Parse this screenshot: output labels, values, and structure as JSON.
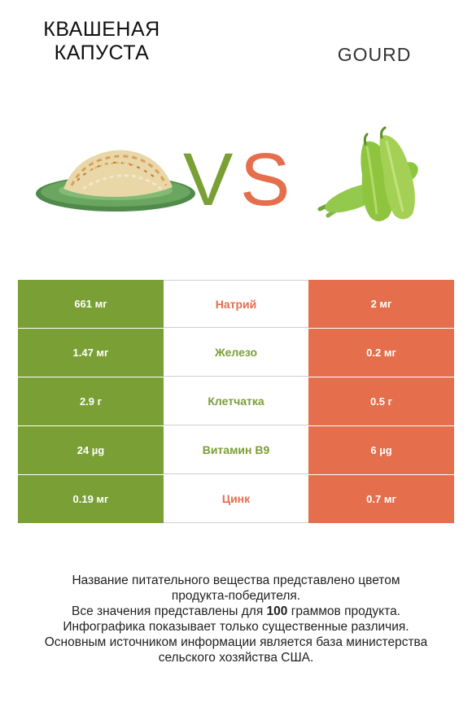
{
  "left_food": {
    "name": "Квашеная капуста",
    "color": "#7a9f35"
  },
  "right_food": {
    "name": "Gourd",
    "color": "#e56e4d"
  },
  "vs": {
    "v": "V",
    "s": "S"
  },
  "nutrients": [
    {
      "name": "Натрий",
      "left": "661 мг",
      "right": "2 мг",
      "winner_color": "#e56e4d"
    },
    {
      "name": "Железо",
      "left": "1.47 мг",
      "right": "0.2 мг",
      "winner_color": "#7a9f35"
    },
    {
      "name": "Клетчатка",
      "left": "2.9 г",
      "right": "0.5 г",
      "winner_color": "#7a9f35"
    },
    {
      "name": "Витамин B9",
      "left": "24 µg",
      "right": "6 µg",
      "winner_color": "#7a9f35"
    },
    {
      "name": "Цинк",
      "left": "0.19 мг",
      "right": "0.7 мг",
      "winner_color": "#e56e4d"
    }
  ],
  "footer": {
    "line1": "Название питательного вещества представлено цветом",
    "line2": "продукта-победителя.",
    "line3_pre": "Все значения представлены для ",
    "line3_bold": "100",
    "line3_post": " граммов продукта.",
    "line4": "Инфографика показывает только существенные различия.",
    "line5": "Основным источником информации является база министерства",
    "line6": "сельского хозяйства США."
  }
}
